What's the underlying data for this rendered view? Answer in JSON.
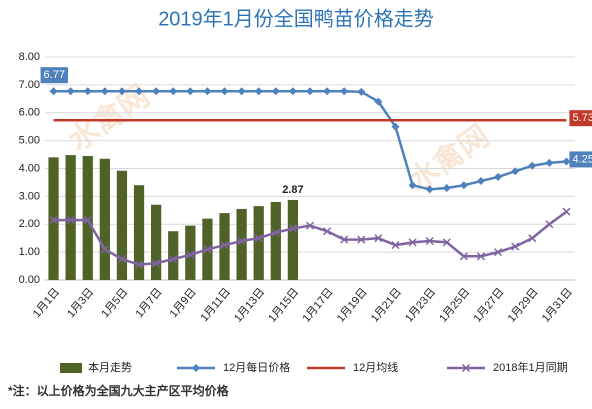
{
  "chart_data": {
    "type": "combo",
    "title": "2019年1月份全国鸭苗价格走势",
    "watermark": "水禽网",
    "footnote": "*注：以上价格为全国九大主产区平均价格",
    "categories": [
      "1月1日",
      null,
      "1月3日",
      null,
      "1月5日",
      null,
      "1月7日",
      null,
      "1月9日",
      null,
      "1月11日",
      null,
      "1月13日",
      null,
      "1月15日",
      null,
      "1月17日",
      null,
      "1月19日",
      null,
      "1月21日",
      null,
      "1月23日",
      null,
      "1月25日",
      null,
      "1月27日",
      null,
      "1月29日",
      null,
      "1月31日"
    ],
    "ylim": [
      0,
      8
    ],
    "yticks": [
      {
        "value": 0,
        "label": "0.00"
      },
      {
        "value": 1,
        "label": "1.00"
      },
      {
        "value": 2,
        "label": "2.00"
      },
      {
        "value": 3,
        "label": "3.00"
      },
      {
        "value": 4,
        "label": "4.00"
      },
      {
        "value": 5,
        "label": "5.00"
      },
      {
        "value": 6,
        "label": "6.00"
      },
      {
        "value": 7,
        "label": "7.00"
      },
      {
        "value": 8,
        "label": "8.00"
      }
    ],
    "grid": true,
    "legend": "bottom",
    "series": [
      {
        "name": "本月走势",
        "type": "bar",
        "color": "#4f6228",
        "values": [
          4.4,
          4.48,
          4.45,
          4.35,
          3.92,
          3.4,
          2.7,
          1.75,
          1.95,
          2.2,
          2.4,
          2.55,
          2.65,
          2.8,
          2.87,
          null,
          null,
          null,
          null,
          null,
          null,
          null,
          null,
          null,
          null,
          null,
          null,
          null,
          null,
          null,
          null
        ],
        "labeled": [
          14
        ]
      },
      {
        "name": "12月每日价格",
        "type": "line",
        "color": "#4f81bd",
        "marker": "diamond",
        "values": [
          6.77,
          6.77,
          6.77,
          6.77,
          6.77,
          6.77,
          6.77,
          6.77,
          6.77,
          6.77,
          6.77,
          6.77,
          6.77,
          6.77,
          6.77,
          6.77,
          6.77,
          6.77,
          6.75,
          6.4,
          5.5,
          3.4,
          3.25,
          3.3,
          3.4,
          3.55,
          3.7,
          3.9,
          4.1,
          4.2,
          4.25
        ],
        "labeled": [
          0,
          30
        ]
      },
      {
        "name": "12月均线",
        "type": "line",
        "color": "#c0392b",
        "marker": null,
        "values": [
          5.73,
          5.73,
          5.73,
          5.73,
          5.73,
          5.73,
          5.73,
          5.73,
          5.73,
          5.73,
          5.73,
          5.73,
          5.73,
          5.73,
          5.73,
          5.73,
          5.73,
          5.73,
          5.73,
          5.73,
          5.73,
          5.73,
          5.73,
          5.73,
          5.73,
          5.73,
          5.73,
          5.73,
          5.73,
          5.73,
          5.73
        ],
        "labeled": [
          30
        ]
      },
      {
        "name": "2018年1月同期",
        "type": "line",
        "color": "#8064a2",
        "marker": "x",
        "values": [
          2.15,
          2.15,
          2.15,
          1.1,
          0.75,
          0.55,
          0.6,
          0.75,
          0.9,
          1.1,
          1.25,
          1.4,
          1.5,
          1.7,
          1.85,
          1.95,
          1.75,
          1.45,
          1.45,
          1.5,
          1.25,
          1.35,
          1.4,
          1.35,
          0.85,
          0.85,
          1.0,
          1.2,
          1.5,
          2.0,
          2.45
        ],
        "labeled": []
      }
    ]
  }
}
